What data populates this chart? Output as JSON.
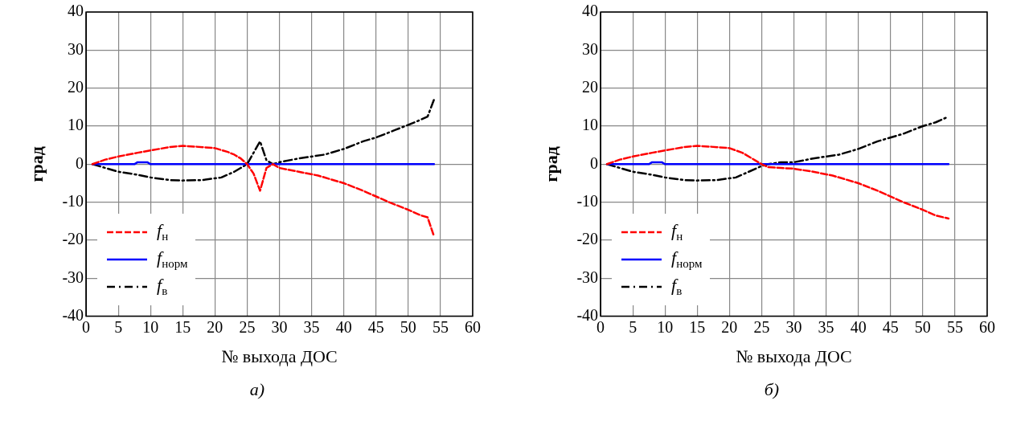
{
  "chart_data": [
    {
      "type": "line",
      "xlabel": "№ выхода ДОС",
      "ylabel": "град",
      "annotations": [
        "а)"
      ],
      "xlim": [
        0,
        60
      ],
      "xticks": [
        0,
        5,
        10,
        15,
        20,
        25,
        30,
        35,
        40,
        45,
        50,
        55,
        60
      ],
      "ylim": [
        -40,
        40
      ],
      "yticks": [
        -40,
        -30,
        -20,
        -10,
        0,
        10,
        20,
        30,
        40
      ],
      "grid": true,
      "legend": "bottom left",
      "marker": "none",
      "series": [
        {
          "name": "f$_{н}$",
          "color": "#ff0000",
          "line_style": "dashed",
          "x": [
            1,
            3,
            5,
            8,
            10,
            13,
            15,
            17,
            20,
            22,
            23,
            24,
            25,
            26,
            27,
            28,
            29,
            30,
            33,
            36,
            40,
            43,
            47,
            50,
            52,
            53,
            54
          ],
          "values": [
            0,
            1.2,
            2,
            3,
            3.6,
            4.5,
            4.8,
            4.6,
            4.2,
            3.2,
            2.5,
            1.5,
            0,
            -2.5,
            -7,
            -1,
            0,
            -1,
            -2,
            -3,
            -5,
            -7,
            -10,
            -12,
            -13.5,
            -14,
            -19
          ]
        },
        {
          "name": "f$_{норм}$",
          "color": "#0000ff",
          "line_style": "solid",
          "x": [
            1,
            7.5,
            8,
            9.5,
            10,
            54
          ],
          "values": [
            0,
            0,
            0.5,
            0.5,
            0,
            0
          ]
        },
        {
          "name": "f$_{в}$",
          "color": "#000000",
          "line_style": "dashdot",
          "x": [
            1,
            3,
            5,
            8,
            10,
            13,
            15,
            18,
            21,
            23,
            24,
            25,
            26,
            27,
            28,
            29,
            30,
            33,
            37,
            40,
            43,
            45,
            48,
            51,
            53,
            54
          ],
          "values": [
            0,
            -1,
            -2,
            -2.8,
            -3.5,
            -4.2,
            -4.3,
            -4.2,
            -3.5,
            -2,
            -1,
            0,
            3,
            6,
            1,
            0,
            0.5,
            1.5,
            2.5,
            4,
            6,
            7,
            9,
            11,
            12.5,
            17
          ]
        }
      ]
    },
    {
      "type": "line",
      "xlabel": "№ выхода ДОС",
      "ylabel": "град",
      "annotations": [
        "б)"
      ],
      "xlim": [
        0,
        60
      ],
      "xticks": [
        0,
        5,
        10,
        15,
        20,
        25,
        30,
        35,
        40,
        45,
        50,
        55,
        60
      ],
      "ylim": [
        -40,
        40
      ],
      "yticks": [
        -40,
        -30,
        -20,
        -10,
        0,
        10,
        20,
        30,
        40
      ],
      "grid": true,
      "legend": "bottom left",
      "marker": "none",
      "series": [
        {
          "name": "f$_{н}$",
          "color": "#ff0000",
          "line_style": "dashed",
          "x": [
            1,
            3,
            5,
            8,
            10,
            13,
            15,
            17,
            20,
            22,
            24,
            25,
            26,
            28,
            30,
            33,
            36,
            40,
            43,
            47,
            50,
            52,
            54
          ],
          "values": [
            0,
            1.2,
            2,
            3,
            3.6,
            4.5,
            4.8,
            4.6,
            4.2,
            3,
            1,
            0,
            -0.8,
            -1,
            -1.2,
            -2,
            -3,
            -5,
            -7,
            -10,
            -12,
            -13.5,
            -14.3
          ]
        },
        {
          "name": "f$_{норм}$",
          "color": "#0000ff",
          "line_style": "solid",
          "x": [
            1,
            7.5,
            8,
            9.5,
            10,
            54
          ],
          "values": [
            0,
            0,
            0.5,
            0.5,
            0,
            0
          ]
        },
        {
          "name": "f$_{в}$",
          "color": "#000000",
          "line_style": "dashdot",
          "x": [
            1,
            3,
            5,
            8,
            10,
            13,
            15,
            18,
            21,
            23,
            25,
            26,
            28,
            30,
            33,
            37,
            40,
            43,
            47,
            50,
            52,
            54
          ],
          "values": [
            0,
            -1,
            -2,
            -2.8,
            -3.5,
            -4.2,
            -4.3,
            -4.2,
            -3.5,
            -2,
            -0.5,
            0,
            0.5,
            0.5,
            1.5,
            2.5,
            4,
            6,
            8,
            10,
            11,
            12.5
          ]
        }
      ]
    }
  ]
}
